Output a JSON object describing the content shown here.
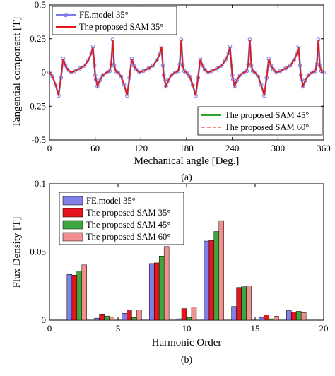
{
  "chart_data": [
    {
      "type": "line",
      "panel_label": "(a)",
      "xlabel": "Mechanical angle  [Deg.]",
      "ylabel": "Tangential component  [T]",
      "xlim": [
        0,
        360
      ],
      "ylim": [
        -0.5,
        0.5
      ],
      "xticks": [
        0,
        60,
        120,
        180,
        240,
        300,
        360
      ],
      "yticks": [
        -0.5,
        -0.25,
        0,
        0.25,
        0.5
      ],
      "ytick_labels": [
        "-0.5",
        "-0.25",
        "0",
        "0.25",
        "0.5"
      ],
      "grid": false,
      "period_deg": 90,
      "pattern_one_period": {
        "x": [
          0,
          4,
          8,
          12,
          15,
          18,
          21,
          24,
          28,
          33,
          40,
          46,
          51,
          55,
          57,
          59,
          60,
          61,
          63,
          66,
          70,
          75,
          79,
          81,
          83,
          85,
          87,
          90
        ],
        "y": [
          0,
          -0.03,
          -0.09,
          -0.17,
          -0.04,
          0.1,
          0.05,
          0.02,
          0.0,
          0.01,
          0.03,
          0.05,
          0.09,
          0.14,
          0.19,
          0.05,
          -0.02,
          -0.05,
          -0.1,
          -0.06,
          -0.02,
          0.0,
          0.01,
          0.06,
          0.24,
          0.05,
          0.01,
          0.0
        ]
      },
      "series": [
        {
          "name": "FE.model 35°",
          "color": "#7b7be8",
          "style": "solid-markers",
          "offset": 0.012
        },
        {
          "name": "The proposed SAM 35°",
          "color": "#e8141c",
          "style": "solid",
          "offset": 0.0
        },
        {
          "name": "The proposed SAM 45°",
          "color": "#2ea62e",
          "style": "solid",
          "offset": -0.006
        },
        {
          "name": "The proposed SAM 60°",
          "color": "#f08c8c",
          "style": "dashed",
          "offset": 0.018
        }
      ],
      "legend_upper": [
        "FE.model 35°",
        "The proposed SAM 35°"
      ],
      "legend_lower": [
        "The proposed SAM 45°",
        "The proposed SAM 60°"
      ]
    },
    {
      "type": "bar",
      "panel_label": "(b)",
      "xlabel": "Harmonic Order",
      "ylabel": "Flux Density  [T]",
      "xlim": [
        0,
        20
      ],
      "ylim": [
        0,
        0.1
      ],
      "xticks": [
        0,
        5,
        10,
        15,
        20
      ],
      "yticks": [
        0,
        0.05,
        0.1
      ],
      "ytick_labels": [
        "0",
        "0.05",
        "0.1"
      ],
      "grid": false,
      "categories": [
        2,
        4,
        6,
        8,
        10,
        12,
        14,
        16,
        18
      ],
      "series": [
        {
          "name": "FE.model 35°",
          "color": "#8080e6",
          "values": [
            0.0335,
            0.0015,
            0.005,
            0.0415,
            0.001,
            0.058,
            0.01,
            0.002,
            0.007
          ]
        },
        {
          "name": "The proposed SAM 35°",
          "color": "#e6141c",
          "values": [
            0.033,
            0.0045,
            0.007,
            0.042,
            0.0085,
            0.0585,
            0.024,
            0.004,
            0.006
          ]
        },
        {
          "name": "The proposed SAM 45°",
          "color": "#3ea83e",
          "values": [
            0.036,
            0.003,
            0.002,
            0.047,
            0.002,
            0.065,
            0.0245,
            0.001,
            0.0065
          ]
        },
        {
          "name": "The proposed SAM 60°",
          "color": "#f09090",
          "values": [
            0.0405,
            0.0025,
            0.0075,
            0.054,
            0.0095,
            0.073,
            0.025,
            0.003,
            0.0055
          ]
        }
      ],
      "legend_position": "top-left"
    }
  ]
}
